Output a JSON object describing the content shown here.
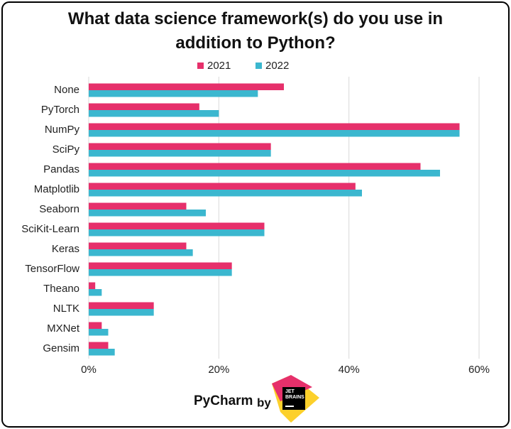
{
  "chart_data": {
    "type": "bar",
    "orientation": "horizontal",
    "title": "What data science framework(s) do you use in addition to Python?",
    "categories": [
      "None",
      "PyTorch",
      "NumPy",
      "SciPy",
      "Pandas",
      "Matplotlib",
      "Seaborn",
      "SciKit-Learn",
      "Keras",
      "TensorFlow",
      "Theano",
      "NLTK",
      "MXNet",
      "Gensim"
    ],
    "series": [
      {
        "name": "2021",
        "color": "#e6306b",
        "values": [
          30,
          17,
          57,
          28,
          51,
          41,
          15,
          27,
          15,
          22,
          1,
          10,
          2,
          3
        ]
      },
      {
        "name": "2022",
        "color": "#3bb7cf",
        "values": [
          26,
          20,
          57,
          28,
          54,
          42,
          18,
          27,
          16,
          22,
          2,
          10,
          3,
          4
        ]
      }
    ],
    "xlim": [
      0,
      60
    ],
    "xticks": [
      {
        "value": 0,
        "label": "0%"
      },
      {
        "value": 20,
        "label": "20%"
      },
      {
        "value": 40,
        "label": "40%"
      },
      {
        "value": 60,
        "label": "60%"
      }
    ],
    "grid": true,
    "legend": "top"
  },
  "footer": {
    "brand": "PyCharm",
    "by": "by",
    "logo_line1": "JET",
    "logo_line2": "BRAINS"
  }
}
